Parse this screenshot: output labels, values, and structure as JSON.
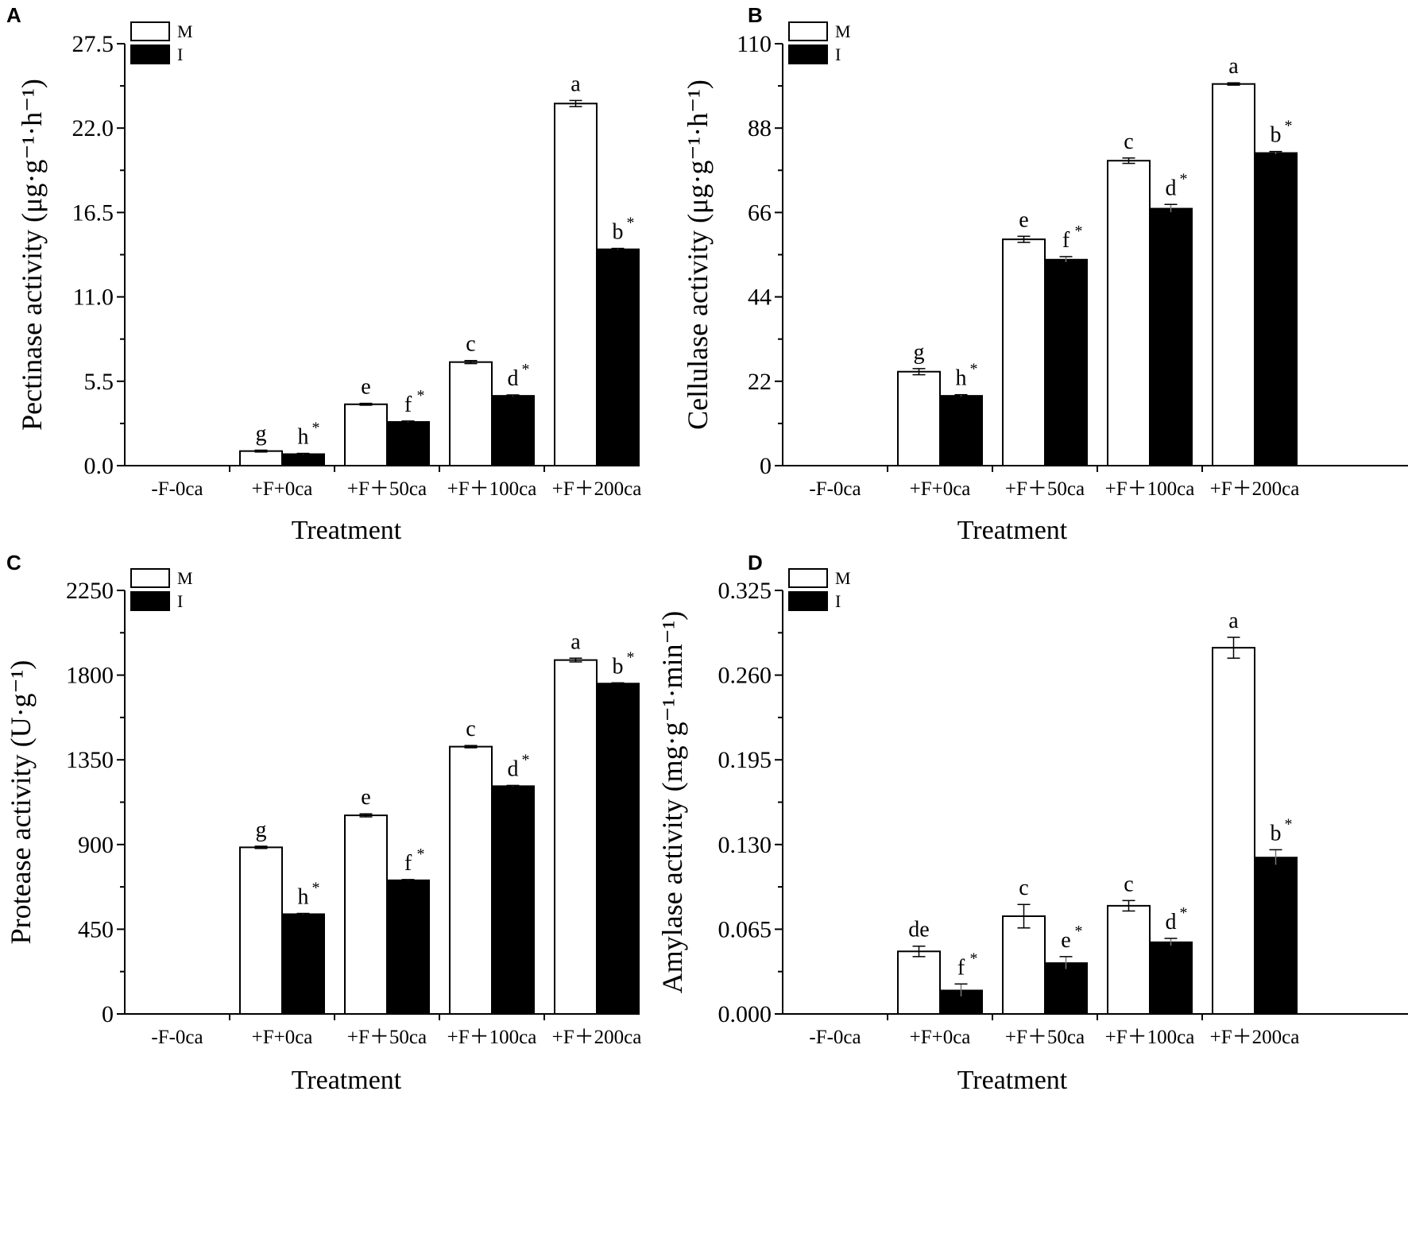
{
  "figure": {
    "legend": {
      "m_label": "M",
      "i_label": "I"
    },
    "colors": {
      "m_fill": "#ffffff",
      "i_fill": "#000000",
      "stroke": "#000000"
    }
  },
  "chart_data": [
    {
      "type": "bar",
      "panel": "A",
      "title": "",
      "xlabel": "Treatment",
      "ylabel": "Pectinase activity (μg·g⁻¹·h⁻¹)",
      "ylim": [
        0,
        27.5
      ],
      "yticks": [
        "0.0",
        "5.5",
        "11.0",
        "16.5",
        "22.0",
        "27.5"
      ],
      "categories": [
        "-F-0ca",
        "+F+0ca",
        "+F＋50ca",
        "+F＋100ca",
        "+F＋200ca"
      ],
      "series": [
        {
          "name": "M",
          "values": [
            0,
            0.95,
            4.0,
            6.75,
            23.6
          ],
          "errors": [
            0,
            0.06,
            0.06,
            0.1,
            0.2
          ],
          "labels": [
            "",
            "g",
            "e",
            "c",
            "a"
          ],
          "stars": [
            false,
            false,
            false,
            false,
            false
          ]
        },
        {
          "name": "I",
          "values": [
            0,
            0.75,
            2.85,
            4.55,
            14.1
          ],
          "errors": [
            0,
            0.05,
            0.06,
            0.06,
            0.06
          ],
          "labels": [
            "",
            "h",
            "f",
            "d",
            "b"
          ],
          "stars": [
            false,
            true,
            true,
            true,
            true
          ]
        }
      ]
    },
    {
      "type": "bar",
      "panel": "B",
      "title": "",
      "xlabel": "Treatment",
      "ylabel": "Cellulase activity (μg·g⁻¹·h⁻¹)",
      "ylim": [
        0,
        110
      ],
      "yticks": [
        "0",
        "22",
        "44",
        "66",
        "88",
        "110"
      ],
      "categories": [
        "-F-0ca",
        "+F+0ca",
        "+F＋50ca",
        "+F＋100ca",
        "+F＋200ca"
      ],
      "series": [
        {
          "name": "M",
          "values": [
            0,
            24.5,
            59,
            79.5,
            99.5
          ],
          "errors": [
            0,
            0.8,
            0.8,
            0.7,
            0.3
          ],
          "labels": [
            "",
            "g",
            "e",
            "c",
            "a"
          ],
          "stars": [
            false,
            false,
            false,
            false,
            false
          ]
        },
        {
          "name": "I",
          "values": [
            0,
            18.2,
            53.7,
            67,
            81.5
          ],
          "errors": [
            0,
            0.3,
            0.8,
            1.1,
            0.4
          ],
          "labels": [
            "",
            "h",
            "f",
            "d",
            "b"
          ],
          "stars": [
            false,
            true,
            true,
            true,
            true
          ]
        }
      ]
    },
    {
      "type": "bar",
      "panel": "C",
      "title": "",
      "xlabel": "Treatment",
      "ylabel": "Protease activity (U·g⁻¹)",
      "ylim": [
        0,
        2250
      ],
      "yticks": [
        "0",
        "450",
        "900",
        "1350",
        "1800",
        "2250"
      ],
      "categories": [
        "-F-0ca",
        "+F+0ca",
        "+F＋50ca",
        "+F＋100ca",
        "+F＋200ca"
      ],
      "series": [
        {
          "name": "M",
          "values": [
            0,
            885,
            1055,
            1420,
            1880
          ],
          "errors": [
            0,
            6,
            8,
            6,
            10
          ],
          "labels": [
            "",
            "g",
            "e",
            "c",
            "a"
          ],
          "stars": [
            false,
            false,
            false,
            false,
            false
          ]
        },
        {
          "name": "I",
          "values": [
            0,
            530,
            710,
            1210,
            1755
          ],
          "errors": [
            0,
            4,
            4,
            4,
            4
          ],
          "labels": [
            "",
            "h",
            "f",
            "d",
            "b"
          ],
          "stars": [
            false,
            true,
            true,
            true,
            true
          ]
        }
      ]
    },
    {
      "type": "bar",
      "panel": "D",
      "title": "",
      "xlabel": "Treatment",
      "ylabel": "Amylase activity (mg·g⁻¹·min⁻¹)",
      "ylim": [
        0,
        0.325
      ],
      "yticks": [
        "0.000",
        "0.065",
        "0.130",
        "0.195",
        "0.260",
        "0.325"
      ],
      "categories": [
        "-F-0ca",
        "+F+0ca",
        "+F＋50ca",
        "+F＋100ca",
        "+F＋200ca"
      ],
      "series": [
        {
          "name": "M",
          "values": [
            0,
            0.048,
            0.075,
            0.083,
            0.281
          ],
          "errors": [
            0,
            0.004,
            0.009,
            0.004,
            0.008
          ],
          "labels": [
            "",
            "de",
            "c",
            "c",
            "a"
          ],
          "stars": [
            false,
            false,
            false,
            false,
            false
          ]
        },
        {
          "name": "I",
          "values": [
            0,
            0.018,
            0.039,
            0.055,
            0.12
          ],
          "errors": [
            0,
            0.005,
            0.005,
            0.003,
            0.006
          ],
          "labels": [
            "",
            "f",
            "e",
            "d",
            "b"
          ],
          "stars": [
            false,
            true,
            true,
            true,
            true
          ]
        }
      ]
    }
  ]
}
